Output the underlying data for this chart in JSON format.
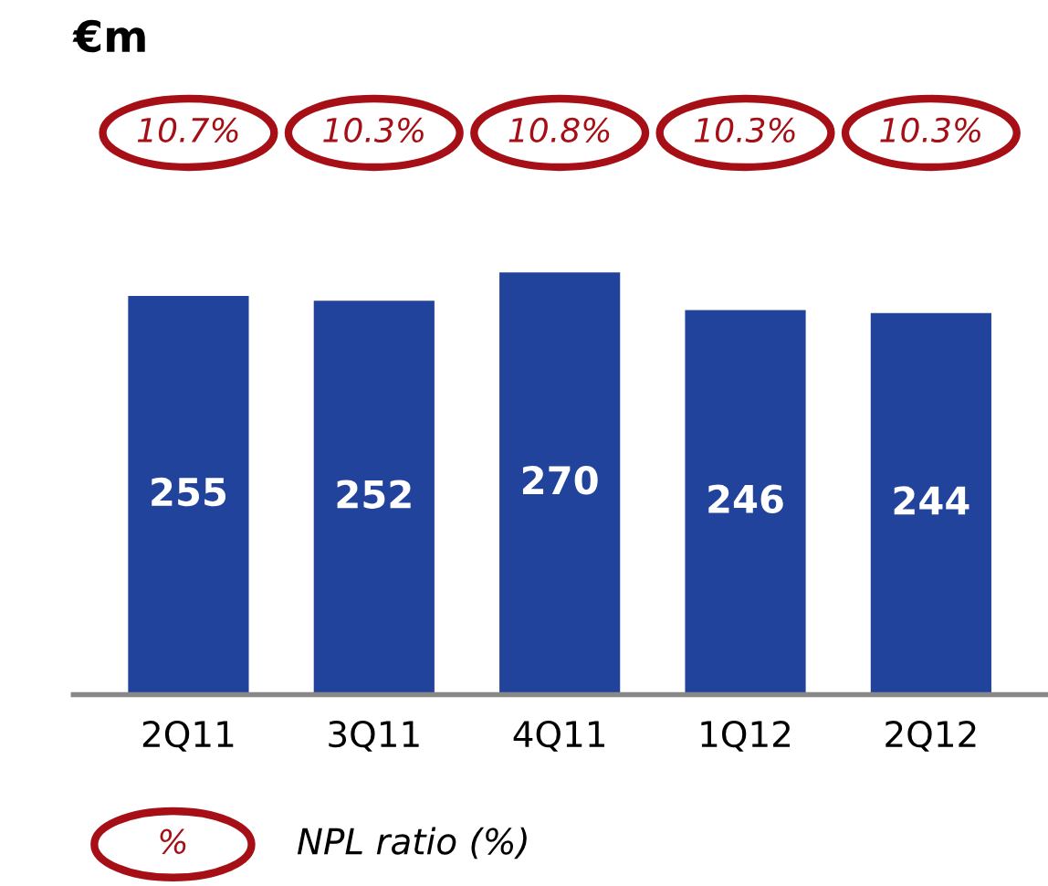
{
  "chart_data": {
    "type": "bar",
    "title": "€m",
    "categories": [
      "2Q11",
      "3Q11",
      "4Q11",
      "1Q12",
      "2Q12"
    ],
    "values": [
      255,
      252,
      270,
      246,
      244
    ],
    "color": "#22439b",
    "data_labels": true,
    "grid": false,
    "legend": false,
    "annotations": [
      "10.7%",
      "10.3%",
      "10.8%",
      "10.3%",
      "10.3%",
      "%",
      "NPL ratio (%)"
    ]
  }
}
